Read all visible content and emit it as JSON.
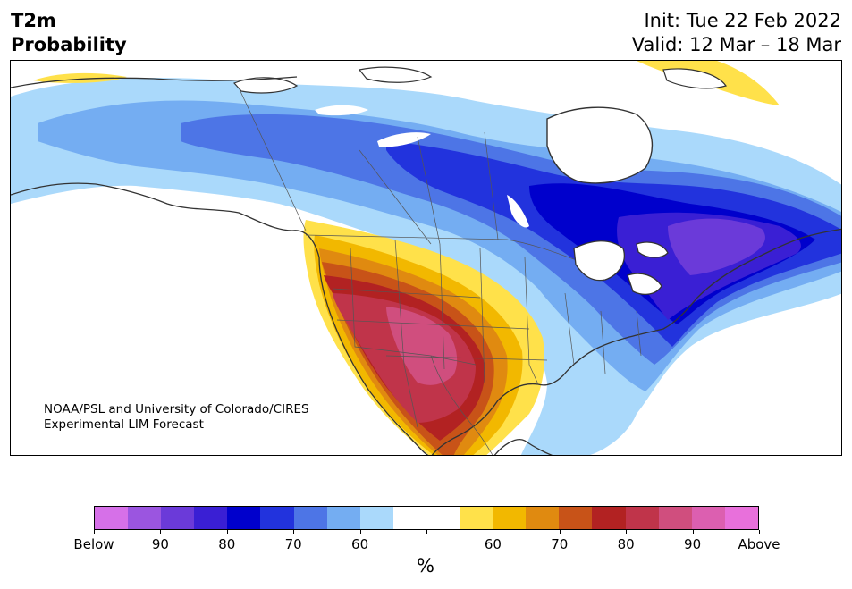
{
  "header": {
    "title_line1": "T2m",
    "title_line2": "Probability",
    "init": "Init: Tue 22 Feb 2022",
    "valid": "Valid: 12 Mar – 18 Mar"
  },
  "credit": {
    "line1": "NOAA/PSL and University of Colorado/CIRES",
    "line2": "Experimental LIM Forecast"
  },
  "colorbar": {
    "colors": [
      "#d670e8",
      "#9b55e0",
      "#6b3ad9",
      "#3a1fd4",
      "#0000cc",
      "#2233dd",
      "#4d75e6",
      "#74adf2",
      "#aad9fb",
      "#ffffff",
      "#ffffff",
      "#ffe14a",
      "#f2b800",
      "#e08a10",
      "#c85318",
      "#b22222",
      "#c0344a",
      "#d04e7e",
      "#dc5fb0",
      "#e870db"
    ],
    "labels": [
      "Below",
      "90",
      "80",
      "70",
      "60",
      "",
      "60",
      "70",
      "80",
      "90",
      "Above"
    ],
    "units": "%"
  },
  "map": {
    "region": "North America",
    "variable": "2-meter temperature tercile probability"
  }
}
